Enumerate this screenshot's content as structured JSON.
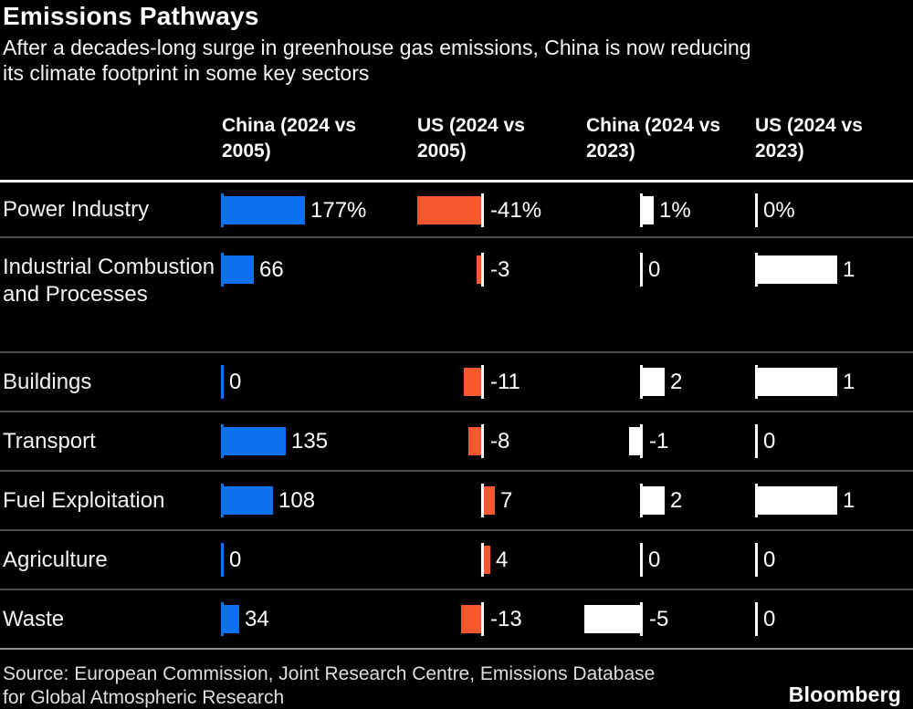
{
  "header": {
    "title": "Emissions Pathways",
    "subtitle": "After a decades-long surge in greenhouse gas emissions, China is now reducing its climate footprint in some key sectors",
    "subtitle_lines": [
      "After a decades-long surge in greenhouse gas emissions, China is now reducing",
      "its climate footprint in some key sectors"
    ]
  },
  "footer": {
    "source": "Source: European Commission, Joint Research Centre, Emissions Database for Global Atmospheric Research",
    "source_lines": [
      "Source: European Commission, Joint Research Centre, Emissions Database",
      "for Global Atmospheric Research"
    ],
    "brand": "Bloomberg"
  },
  "chart_data": {
    "type": "bar",
    "orientation": "horizontal",
    "title": "Emissions Pathways",
    "subtitle": "After a decades-long surge in greenhouse gas emissions, China is now reducing its climate footprint in some key sectors",
    "categories": [
      "Power Industry",
      "Industrial Combustion and Processes",
      "Buildings",
      "Transport",
      "Fuel Exploitation",
      "Agriculture",
      "Waste"
    ],
    "unit": "percent change",
    "legend_position": "column headers",
    "grid": false,
    "series": [
      {
        "name": "China (2024 vs 2005)",
        "label_lines": [
          "China (2024 vs",
          "2005)"
        ],
        "bar_color": "#0c72ee",
        "tick_color": "#0c72ee",
        "values": [
          177,
          66,
          0,
          135,
          108,
          0,
          34
        ],
        "value_labels": [
          "177%",
          "66",
          "0",
          "135",
          "108",
          "0",
          "34"
        ]
      },
      {
        "name": "US (2024 vs 2005)",
        "label_lines": [
          "US (2024 vs",
          "2005)"
        ],
        "bar_color": "#f8582e",
        "tick_color": "#ffffff",
        "values": [
          -41,
          -3,
          -11,
          -8,
          7,
          4,
          -13
        ],
        "value_labels": [
          "-41%",
          "-3",
          "-11",
          "-8",
          "7",
          "4",
          "-13"
        ]
      },
      {
        "name": "China (2024 vs 2023)",
        "label_lines": [
          "China (2024 vs",
          "2023)"
        ],
        "bar_color": "#ffffff",
        "tick_color": "#ffffff",
        "values": [
          1,
          0,
          2,
          -1,
          2,
          0,
          -5
        ],
        "value_labels": [
          "1%",
          "0",
          "2",
          "-1",
          "2",
          "0",
          "-5"
        ]
      },
      {
        "name": "US (2024 vs 2023)",
        "label_lines": [
          "US (2024 vs",
          "2023)"
        ],
        "bar_color": "#ffffff",
        "tick_color": "#ffffff",
        "values": [
          0,
          1,
          1,
          0,
          1,
          0,
          0
        ],
        "value_labels": [
          "0%",
          "1",
          "1",
          "0",
          "1",
          "0",
          "0"
        ]
      }
    ]
  }
}
